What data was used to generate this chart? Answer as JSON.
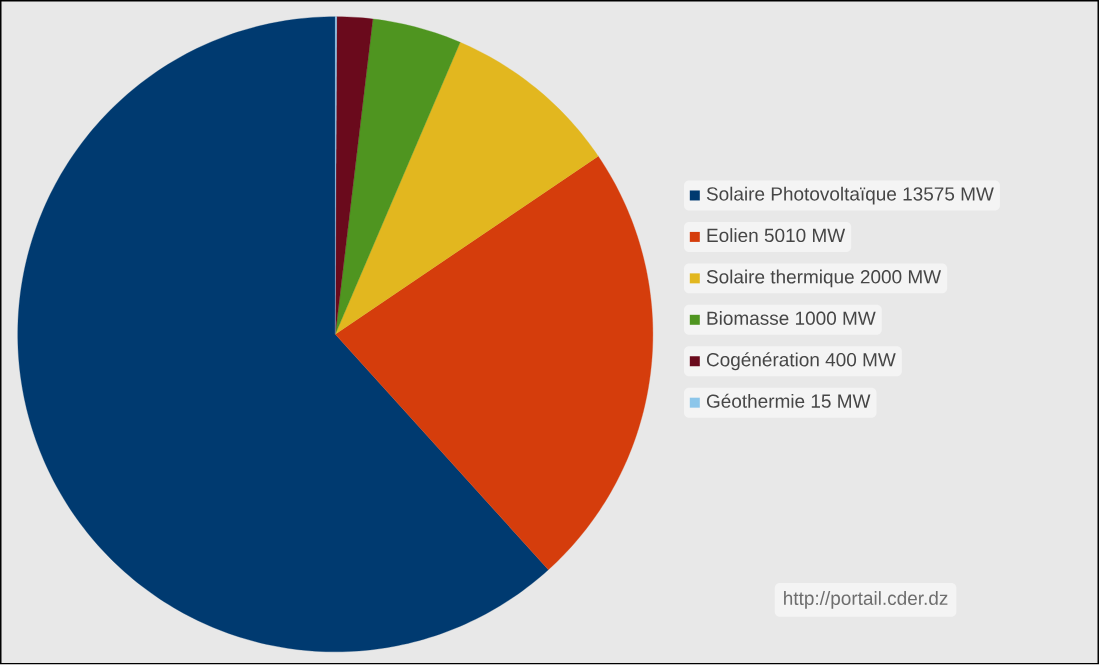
{
  "chart_data": {
    "type": "pie",
    "categories": [
      "Solaire Photovoltaïque 13575 MW",
      "Eolien 5010 MW",
      "Solaire thermique 2000 MW",
      "Biomasse 1000 MW",
      "Cogénération 400 MW",
      "Géothermie 15 MW"
    ],
    "values": [
      13575,
      5010,
      2000,
      1000,
      400,
      15
    ],
    "colors": [
      "#003a70",
      "#d53d0c",
      "#e2b71f",
      "#4f9520",
      "#6a0a1c",
      "#8cc6ea"
    ],
    "legend": "right",
    "annotations": [
      "http://portail.cder.dz"
    ]
  }
}
